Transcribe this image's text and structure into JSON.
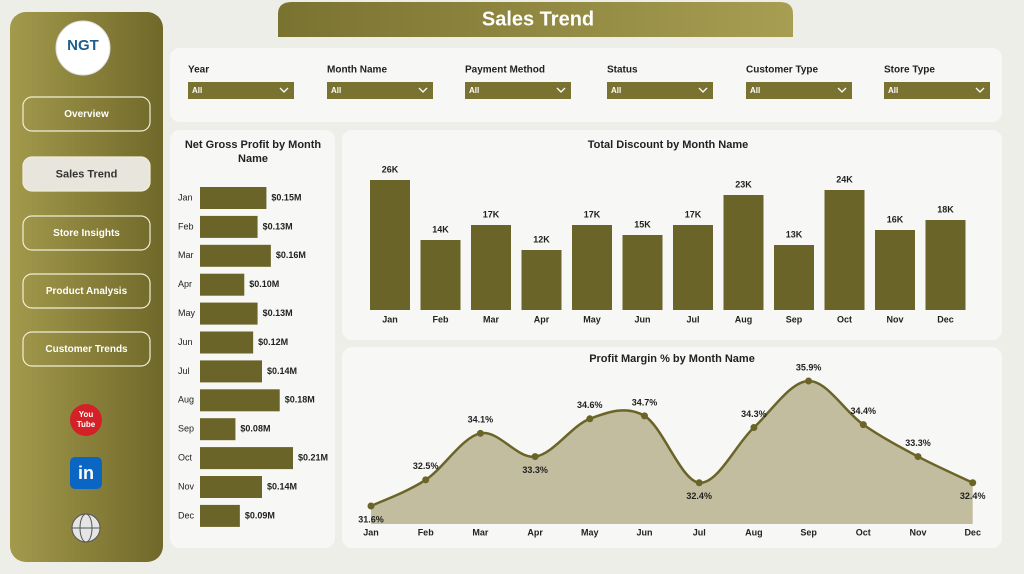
{
  "header": {
    "title": "Sales Trend"
  },
  "logo": {
    "text": "NGT"
  },
  "nav": [
    "Overview",
    "Sales Trend",
    "Store Insights",
    "Product Analysis",
    "Customer Trends"
  ],
  "nav_active": 1,
  "icons": {
    "youtube": [
      "You",
      "Tube"
    ],
    "linkedin": "in"
  },
  "filters": [
    {
      "label": "Year",
      "value": "All"
    },
    {
      "label": "Month Name",
      "value": "All"
    },
    {
      "label": "Payment Method",
      "value": "All"
    },
    {
      "label": "Status",
      "value": "All"
    },
    {
      "label": "Customer Type",
      "value": "All"
    },
    {
      "label": "Store Type",
      "value": "All"
    }
  ],
  "chart_data": [
    {
      "type": "hbar",
      "title": "Net Gross Profit by Month Name",
      "color": "#6b6428",
      "categories": [
        "Jan",
        "Feb",
        "Mar",
        "Apr",
        "May",
        "Jun",
        "Jul",
        "Aug",
        "Sep",
        "Oct",
        "Nov",
        "Dec"
      ],
      "values": [
        0.15,
        0.13,
        0.16,
        0.1,
        0.13,
        0.12,
        0.14,
        0.18,
        0.08,
        0.21,
        0.14,
        0.09
      ],
      "value_labels": [
        "$0.15M",
        "$0.13M",
        "$0.16M",
        "$0.10M",
        "$0.13M",
        "$0.12M",
        "$0.14M",
        "$0.18M",
        "$0.08M",
        "$0.21M",
        "$0.14M",
        "$0.09M"
      ]
    },
    {
      "type": "bar",
      "title": "Total Discount by Month Name",
      "color": "#6b6428",
      "categories": [
        "Jan",
        "Feb",
        "Mar",
        "Apr",
        "May",
        "Jun",
        "Jul",
        "Aug",
        "Sep",
        "Oct",
        "Nov",
        "Dec"
      ],
      "values": [
        26000,
        14000,
        17000,
        12000,
        17000,
        15000,
        17000,
        23000,
        13000,
        24000,
        16000,
        18000
      ],
      "value_labels": [
        "26K",
        "14K",
        "17K",
        "12K",
        "17K",
        "15K",
        "17K",
        "23K",
        "13K",
        "24K",
        "16K",
        "18K"
      ]
    },
    {
      "type": "area",
      "title": "Profit Margin % by Month Name",
      "color": "#6b6428",
      "fill": "#c2bd9e",
      "categories": [
        "Jan",
        "Feb",
        "Mar",
        "Apr",
        "May",
        "Jun",
        "Jul",
        "Aug",
        "Sep",
        "Oct",
        "Nov",
        "Dec"
      ],
      "values": [
        31.6,
        32.5,
        34.1,
        33.3,
        34.6,
        34.7,
        32.4,
        34.3,
        35.9,
        34.4,
        33.3,
        32.4
      ],
      "value_labels": [
        "31.6%",
        "32.5%",
        "34.1%",
        "33.3%",
        "34.6%",
        "34.7%",
        "32.4%",
        "34.3%",
        "35.9%",
        "34.4%",
        "33.3%",
        "32.4%"
      ]
    }
  ]
}
